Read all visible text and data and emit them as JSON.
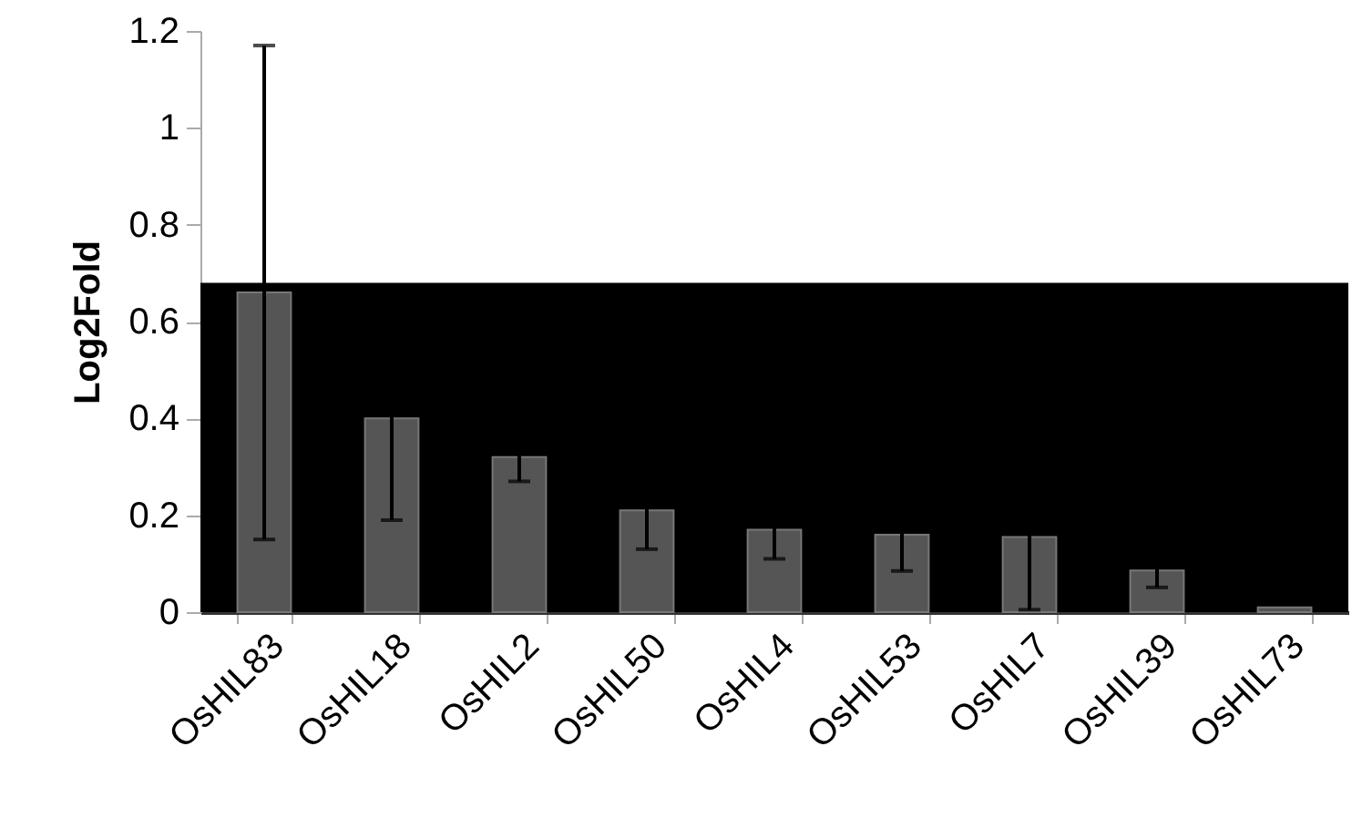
{
  "chart_data": {
    "type": "bar",
    "ylabel": "Log2Fold",
    "categories": [
      "OsHIL83",
      "OsHIL18",
      "OsHIL2",
      "OsHIL50",
      "OsHIL4",
      "OsHIL53",
      "OsHIL7",
      "OsHIL39",
      "OsHIL73"
    ],
    "values": [
      0.66,
      0.4,
      0.32,
      0.21,
      0.17,
      0.16,
      0.155,
      0.086,
      0.01
    ],
    "errors": [
      0.51,
      0.21,
      0.05,
      0.08,
      0.06,
      0.075,
      0.15,
      0.035,
      null
    ],
    "color": "#555555",
    "ylim": [
      0,
      1.2
    ],
    "yticks": [
      0,
      0.2,
      0.4,
      0.6,
      0.8,
      1,
      1.2
    ],
    "bands": [
      {
        "axis": "y",
        "from": 0,
        "to": 0.68,
        "color": "#000000"
      }
    ],
    "grid": false
  }
}
